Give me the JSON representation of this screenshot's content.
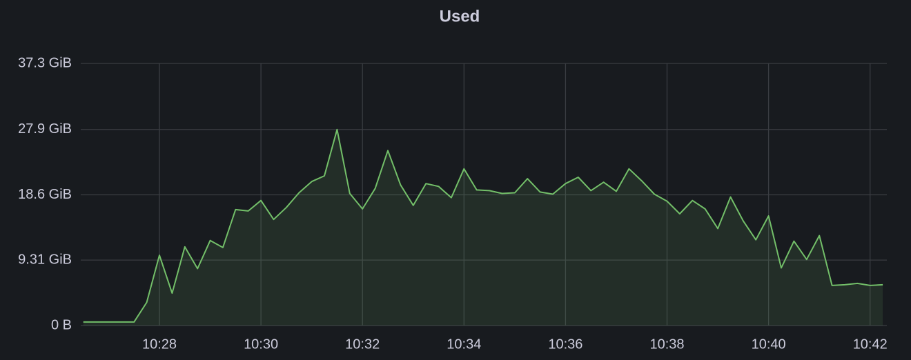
{
  "chart_data": {
    "type": "line",
    "title": "Used",
    "x": [
      626.5,
      626.75,
      627,
      627.25,
      627.5,
      627.75,
      628,
      628.25,
      628.5,
      628.75,
      629,
      629.25,
      629.5,
      629.75,
      630,
      630.25,
      630.5,
      630.75,
      631,
      631.25,
      631.5,
      631.75,
      632,
      632.25,
      632.5,
      632.75,
      633,
      633.25,
      633.5,
      633.75,
      634,
      634.25,
      634.5,
      634.75,
      635,
      635.25,
      635.5,
      635.75,
      636,
      636.25,
      636.5,
      636.75,
      637,
      637.25,
      637.5,
      637.75,
      638,
      638.25,
      638.5,
      638.75,
      639,
      639.25,
      639.5,
      639.75,
      640,
      640.25,
      640.5,
      640.75,
      641,
      641.25,
      641.5,
      641.75,
      642,
      642.25
    ],
    "series": [
      {
        "color": "#73bf69",
        "values": [
          0.5,
          0.5,
          0.5,
          0.5,
          0.5,
          3.3,
          10.0,
          4.6,
          11.2,
          8.1,
          12.1,
          11.1,
          16.5,
          16.3,
          17.8,
          15.1,
          16.8,
          18.9,
          20.5,
          21.3,
          27.9,
          18.8,
          16.6,
          19.5,
          24.9,
          20.0,
          17.1,
          20.2,
          19.8,
          18.2,
          22.3,
          19.3,
          19.2,
          18.8,
          18.9,
          20.9,
          19.0,
          18.7,
          20.2,
          21.1,
          19.2,
          20.4,
          19.1,
          22.3,
          20.6,
          18.7,
          17.7,
          15.9,
          17.8,
          16.6,
          13.8,
          18.3,
          14.9,
          12.2,
          15.6,
          8.2,
          12.0,
          9.4,
          12.8,
          5.7,
          5.8,
          6.0,
          5.7,
          5.8
        ]
      }
    ],
    "xlim": [
      626.45,
      642.33
    ],
    "xticks": [
      {
        "value": 628,
        "label": "10:28"
      },
      {
        "value": 630,
        "label": "10:30"
      },
      {
        "value": 632,
        "label": "10:32"
      },
      {
        "value": 634,
        "label": "10:34"
      },
      {
        "value": 636,
        "label": "10:36"
      },
      {
        "value": 638,
        "label": "10:38"
      },
      {
        "value": 640,
        "label": "10:40"
      },
      {
        "value": 642,
        "label": "10:42"
      }
    ],
    "ylim": [
      0,
      37.3
    ],
    "yticks": [
      {
        "value": 0,
        "label": "0 B"
      },
      {
        "value": 9.31,
        "label": "9.31 GiB"
      },
      {
        "value": 18.6,
        "label": "18.6 GiB"
      },
      {
        "value": 27.9,
        "label": "27.9 GiB"
      },
      {
        "value": 37.3,
        "label": "37.3 GiB"
      }
    ],
    "grid": true
  }
}
